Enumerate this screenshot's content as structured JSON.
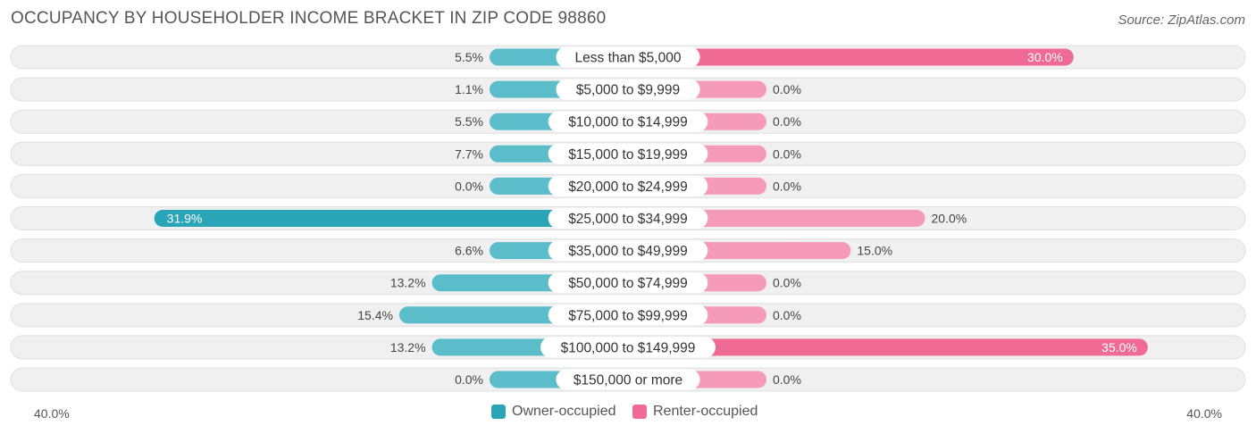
{
  "header": {
    "title": "OCCUPANCY BY HOUSEHOLDER INCOME BRACKET IN ZIP CODE 98860",
    "source": "Source: ZipAtlas.com"
  },
  "colors": {
    "owner": "#5bbcca",
    "owner_strong": "#2aa5b8",
    "renter": "#f59ab8",
    "renter_strong": "#ef6a95",
    "row_bg": "#f0f0f0",
    "row_border": "#e0e0e0"
  },
  "chart_data": {
    "type": "bar",
    "orientation": "horizontal-diverging",
    "categories": [
      "Less than $5,000",
      "$5,000 to $9,999",
      "$10,000 to $14,999",
      "$15,000 to $19,999",
      "$20,000 to $24,999",
      "$25,000 to $34,999",
      "$35,000 to $49,999",
      "$50,000 to $74,999",
      "$75,000 to $99,999",
      "$100,000 to $149,999",
      "$150,000 or more"
    ],
    "series": [
      {
        "name": "Owner-occupied",
        "values": [
          5.5,
          1.1,
          5.5,
          7.7,
          0.0,
          31.9,
          6.6,
          13.2,
          15.4,
          13.2,
          0.0
        ],
        "labels": [
          "5.5%",
          "1.1%",
          "5.5%",
          "7.7%",
          "0.0%",
          "31.9%",
          "6.6%",
          "13.2%",
          "15.4%",
          "13.2%",
          "0.0%"
        ]
      },
      {
        "name": "Renter-occupied",
        "values": [
          30.0,
          0.0,
          0.0,
          0.0,
          0.0,
          20.0,
          15.0,
          0.0,
          0.0,
          35.0,
          0.0
        ],
        "labels": [
          "30.0%",
          "0.0%",
          "0.0%",
          "0.0%",
          "0.0%",
          "20.0%",
          "15.0%",
          "0.0%",
          "0.0%",
          "35.0%",
          "0.0%"
        ]
      }
    ],
    "xlim": [
      -40,
      40
    ],
    "axis_left_label": "40.0%",
    "axis_right_label": "40.0%",
    "legend_position": "bottom-center"
  }
}
